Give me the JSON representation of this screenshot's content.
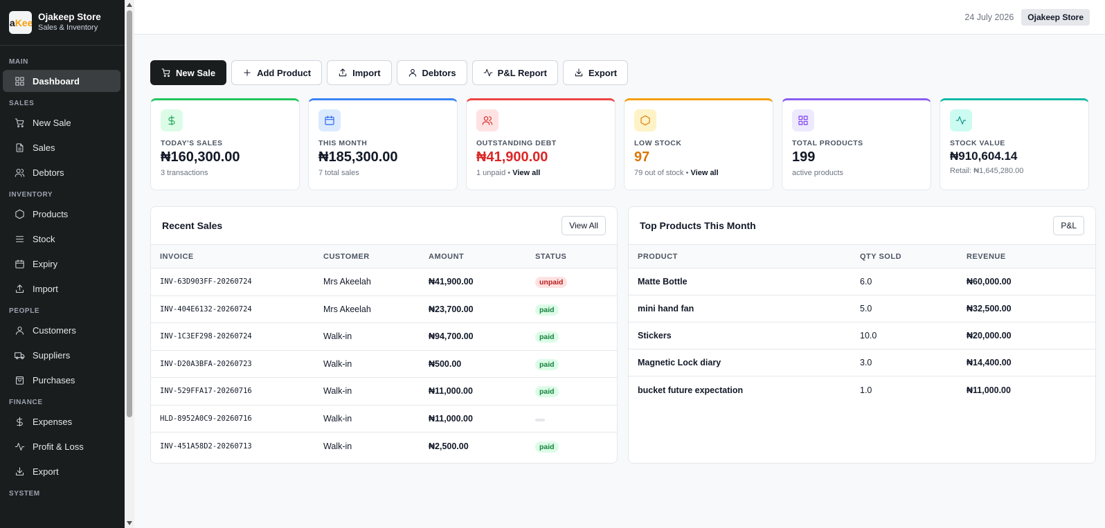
{
  "brand": {
    "logo_a": "ja",
    "logo_b": "Kee",
    "title": "Ojakeep Store",
    "subtitle": "Sales & Inventory"
  },
  "sidebar": {
    "sections": [
      {
        "label": "MAIN",
        "items": [
          {
            "label": "Dashboard",
            "icon": "grid-icon",
            "active": true
          }
        ]
      },
      {
        "label": "SALES",
        "items": [
          {
            "label": "New Sale",
            "icon": "cart-icon"
          },
          {
            "label": "Sales",
            "icon": "document-icon"
          },
          {
            "label": "Debtors",
            "icon": "users-icon"
          }
        ]
      },
      {
        "label": "INVENTORY",
        "items": [
          {
            "label": "Products",
            "icon": "hexagon-icon"
          },
          {
            "label": "Stock",
            "icon": "list-icon"
          },
          {
            "label": "Expiry",
            "icon": "calendar-icon"
          },
          {
            "label": "Import",
            "icon": "upload-icon"
          }
        ]
      },
      {
        "label": "PEOPLE",
        "items": [
          {
            "label": "Customers",
            "icon": "user-icon"
          },
          {
            "label": "Suppliers",
            "icon": "truck-icon"
          },
          {
            "label": "Purchases",
            "icon": "bag-icon"
          }
        ]
      },
      {
        "label": "FINANCE",
        "items": [
          {
            "label": "Expenses",
            "icon": "dollar-icon"
          },
          {
            "label": "Profit & Loss",
            "icon": "activity-icon"
          },
          {
            "label": "Export",
            "icon": "download-icon"
          }
        ]
      },
      {
        "label": "SYSTEM",
        "items": []
      }
    ]
  },
  "topbar": {
    "date": "24 July 2026",
    "store": "Ojakeep Store"
  },
  "actions": [
    {
      "label": "New Sale",
      "icon": "cart-icon",
      "primary": true
    },
    {
      "label": "Add Product",
      "icon": "plus-icon"
    },
    {
      "label": "Import",
      "icon": "upload-icon"
    },
    {
      "label": "Debtors",
      "icon": "user-icon"
    },
    {
      "label": "P&L Report",
      "icon": "activity-icon"
    },
    {
      "label": "Export",
      "icon": "download-icon"
    }
  ],
  "cards": [
    {
      "label": "TODAY'S SALES",
      "value": "₦160,300.00",
      "sub": "3 transactions",
      "link": "",
      "accent": "#22c55e",
      "icon_bg": "#dcfce7",
      "icon_color": "#16a34a",
      "value_color": "#111827",
      "icon": "dollar-icon",
      "small": false
    },
    {
      "label": "THIS MONTH",
      "value": "₦185,300.00",
      "sub": "7 total sales",
      "link": "",
      "accent": "#3b82f6",
      "icon_bg": "#dbeafe",
      "icon_color": "#2563eb",
      "value_color": "#111827",
      "icon": "calendar-icon",
      "small": false
    },
    {
      "label": "OUTSTANDING DEBT",
      "value": "₦41,900.00",
      "sub": "1 unpaid •",
      "link": "View all",
      "accent": "#ef4444",
      "icon_bg": "#fee2e2",
      "icon_color": "#dc2626",
      "value_color": "#dc2626",
      "icon": "users-icon",
      "small": false
    },
    {
      "label": "LOW STOCK",
      "value": "97",
      "sub": "79 out of stock •",
      "link": "View all",
      "accent": "#f59e0b",
      "icon_bg": "#fef3c7",
      "icon_color": "#d97706",
      "value_color": "#d97706",
      "icon": "hexagon-icon",
      "small": false
    },
    {
      "label": "TOTAL PRODUCTS",
      "value": "199",
      "sub": "active products",
      "link": "",
      "accent": "#8b5cf6",
      "icon_bg": "#ede9fe",
      "icon_color": "#7c3aed",
      "value_color": "#111827",
      "icon": "grid-icon",
      "small": false
    },
    {
      "label": "STOCK VALUE",
      "value": "₦910,604.14",
      "sub": "Retail: ₦1,645,280.00",
      "link": "",
      "accent": "#14b8a6",
      "icon_bg": "#ccfbf1",
      "icon_color": "#0d9488",
      "value_color": "#111827",
      "icon": "activity-icon",
      "small": true
    }
  ],
  "recent_sales": {
    "title": "Recent Sales",
    "button": "View All",
    "columns": [
      "INVOICE",
      "CUSTOMER",
      "AMOUNT",
      "STATUS"
    ],
    "rows": [
      {
        "invoice": "INV-63D903FF-20260724",
        "customer": "Mrs Akeelah",
        "amount": "₦41,900.00",
        "status": "unpaid"
      },
      {
        "invoice": "INV-404E6132-20260724",
        "customer": "Mrs Akeelah",
        "amount": "₦23,700.00",
        "status": "paid"
      },
      {
        "invoice": "INV-1C3EF298-20260724",
        "customer": "Walk-in",
        "amount": "₦94,700.00",
        "status": "paid"
      },
      {
        "invoice": "INV-D20A3BFA-20260723",
        "customer": "Walk-in",
        "amount": "₦500.00",
        "status": "paid"
      },
      {
        "invoice": "INV-529FFA17-20260716",
        "customer": "Walk-in",
        "amount": "₦11,000.00",
        "status": "paid"
      },
      {
        "invoice": "HLD-8952A0C9-20260716",
        "customer": "Walk-in",
        "amount": "₦11,000.00",
        "status": ""
      },
      {
        "invoice": "INV-451A58D2-20260713",
        "customer": "Walk-in",
        "amount": "₦2,500.00",
        "status": "paid"
      }
    ]
  },
  "top_products": {
    "title": "Top Products This Month",
    "button": "P&L",
    "columns": [
      "PRODUCT",
      "QTY SOLD",
      "REVENUE"
    ],
    "rows": [
      {
        "product": "Matte Bottle",
        "qty": "6.0",
        "revenue": "₦60,000.00"
      },
      {
        "product": "mini hand fan",
        "qty": "5.0",
        "revenue": "₦32,500.00"
      },
      {
        "product": "Stickers",
        "qty": "10.0",
        "revenue": "₦20,000.00"
      },
      {
        "product": "Magnetic Lock diary",
        "qty": "3.0",
        "revenue": "₦14,400.00"
      },
      {
        "product": "bucket future expectation",
        "qty": "1.0",
        "revenue": "₦11,000.00"
      }
    ]
  }
}
